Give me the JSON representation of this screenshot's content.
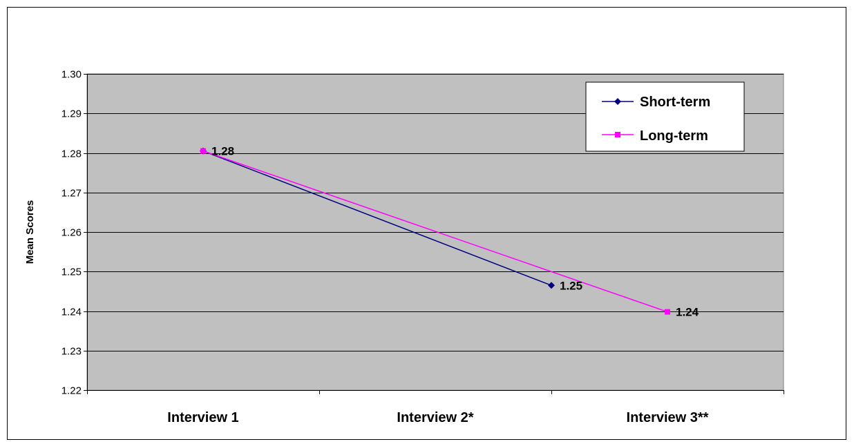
{
  "chart_data": {
    "type": "line",
    "title": "",
    "xlabel": "",
    "ylabel": "Mean Scores",
    "categories": [
      "Interview 1",
      "Interview 2*",
      "Interview 3**"
    ],
    "ylim": [
      1.22,
      1.3
    ],
    "yticks": [
      "1.22",
      "1.23",
      "1.24",
      "1.25",
      "1.26",
      "1.27",
      "1.28",
      "1.29",
      "1.30"
    ],
    "grid": true,
    "legend": "top-right",
    "series": [
      {
        "name": "Short-term",
        "color": "#000080",
        "marker": "diamond",
        "points": [
          {
            "x": 0,
            "y": 1.2805,
            "label": ""
          },
          {
            "x": 1.5,
            "y": 1.2465,
            "label": "1.25"
          }
        ]
      },
      {
        "name": "Long-term",
        "color": "#ff00ff",
        "marker": "square",
        "points": [
          {
            "x": 0,
            "y": 1.2805,
            "label": "1.28"
          },
          {
            "x": 2,
            "y": 1.2398,
            "label": "1.24"
          }
        ]
      }
    ]
  }
}
